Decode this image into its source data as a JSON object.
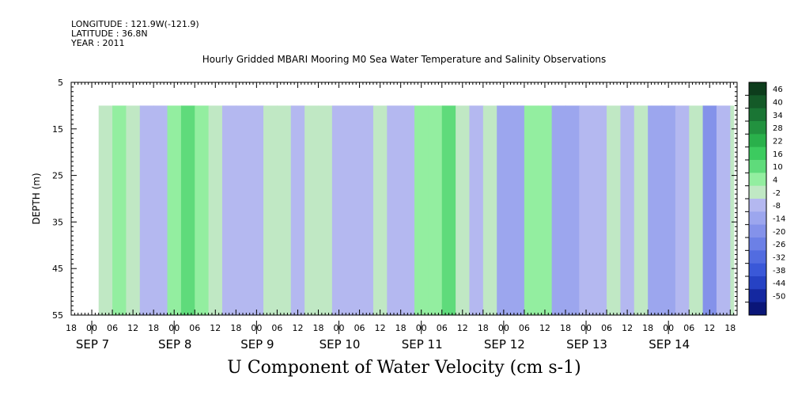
{
  "header": {
    "longitude": "LONGITUDE : 121.9W(-121.9)",
    "latitude": "LATITUDE : 36.8N",
    "year": "YEAR : 2011"
  },
  "chart_data": {
    "type": "heatmap",
    "title": "Hourly Gridded MBARI Mooring M0 Sea Water Temperature and Salinity Observations",
    "xlabel": "U Component of Water Velocity (cm s-1)",
    "ylabel": "DEPTH (m)",
    "x_range_hours": [
      "2011-09-06 18:00",
      "2011-09-14 20:00"
    ],
    "data_start": "2011-09-07 02:00",
    "data_end": "2011-09-14 19:00",
    "y_range": [
      55,
      5
    ],
    "y_ticks": [
      5,
      15,
      25,
      35,
      45,
      55
    ],
    "data_depth_range": [
      10,
      55
    ],
    "x_hour_ticks": [
      "18",
      "00",
      "06",
      "12",
      "18",
      "00",
      "06",
      "12",
      "18",
      "00",
      "06",
      "12",
      "18",
      "00",
      "06",
      "12",
      "18",
      "00",
      "06",
      "12",
      "18",
      "00",
      "06",
      "12",
      "18",
      "00",
      "06",
      "12",
      "18",
      "00",
      "06",
      "12",
      "18"
    ],
    "x_day_labels": [
      {
        "label": "SEP 7",
        "at": "2011-09-07 00:00"
      },
      {
        "label": "SEP 8",
        "at": "2011-09-08 00:00"
      },
      {
        "label": "SEP 9",
        "at": "2011-09-09 00:00"
      },
      {
        "label": "SEP 10",
        "at": "2011-09-10 00:00"
      },
      {
        "label": "SEP 11",
        "at": "2011-09-11 00:00"
      },
      {
        "label": "SEP 12",
        "at": "2011-09-12 00:00"
      },
      {
        "label": "SEP 13",
        "at": "2011-09-13 00:00"
      },
      {
        "label": "SEP 14",
        "at": "2011-09-14 00:00"
      }
    ],
    "colorbar": {
      "levels": [
        46,
        40,
        34,
        28,
        22,
        16,
        10,
        4,
        -2,
        -8,
        -14,
        -20,
        -26,
        -32,
        -38,
        -44,
        -50
      ],
      "colors": [
        "#0d3d1c",
        "#145a28",
        "#1a7534",
        "#22923f",
        "#2ab04b",
        "#3ccb5f",
        "#5fdb7b",
        "#93eea0",
        "#c0e8c4",
        "#b4b8f0",
        "#9ca6ee",
        "#8492ea",
        "#6c80e6",
        "#526ce0",
        "#3a58d8",
        "#2642c4",
        "#1428a0",
        "#0a1678"
      ]
    },
    "bands": [
      {
        "t": "2011-09-07 02:00",
        "u": 2
      },
      {
        "t": "2011-09-07 06:00",
        "u": 6
      },
      {
        "t": "2011-09-07 10:00",
        "u": 3
      },
      {
        "t": "2011-09-07 14:00",
        "u": -6
      },
      {
        "t": "2011-09-07 18:00",
        "u": -4
      },
      {
        "t": "2011-09-07 22:00",
        "u": 5
      },
      {
        "t": "2011-09-08 02:00",
        "u": 10
      },
      {
        "t": "2011-09-08 06:00",
        "u": 7
      },
      {
        "t": "2011-09-08 10:00",
        "u": 2
      },
      {
        "t": "2011-09-08 14:00",
        "u": -5
      },
      {
        "t": "2011-09-08 18:00",
        "u": -8
      },
      {
        "t": "2011-09-08 22:00",
        "u": -4
      },
      {
        "t": "2011-09-09 02:00",
        "u": 2
      },
      {
        "t": "2011-09-09 06:00",
        "u": 1
      },
      {
        "t": "2011-09-09 10:00",
        "u": -4
      },
      {
        "t": "2011-09-09 14:00",
        "u": 3
      },
      {
        "t": "2011-09-09 18:00",
        "u": 2
      },
      {
        "t": "2011-09-09 22:00",
        "u": -3
      },
      {
        "t": "2011-09-10 02:00",
        "u": -7
      },
      {
        "t": "2011-09-10 06:00",
        "u": -5
      },
      {
        "t": "2011-09-10 10:00",
        "u": 0
      },
      {
        "t": "2011-09-10 14:00",
        "u": -6
      },
      {
        "t": "2011-09-10 18:00",
        "u": -3
      },
      {
        "t": "2011-09-10 22:00",
        "u": 5
      },
      {
        "t": "2011-09-11 02:00",
        "u": 8
      },
      {
        "t": "2011-09-11 06:00",
        "u": 12
      },
      {
        "t": "2011-09-11 10:00",
        "u": 2
      },
      {
        "t": "2011-09-11 14:00",
        "u": -8
      },
      {
        "t": "2011-09-11 18:00",
        "u": 0
      },
      {
        "t": "2011-09-11 22:00",
        "u": -12
      },
      {
        "t": "2011-09-12 02:00",
        "u": -10
      },
      {
        "t": "2011-09-12 06:00",
        "u": 4
      },
      {
        "t": "2011-09-12 10:00",
        "u": 8
      },
      {
        "t": "2011-09-12 14:00",
        "u": -14
      },
      {
        "t": "2011-09-12 18:00",
        "u": -10
      },
      {
        "t": "2011-09-12 22:00",
        "u": -6
      },
      {
        "t": "2011-09-13 02:00",
        "u": -8
      },
      {
        "t": "2011-09-13 06:00",
        "u": 2
      },
      {
        "t": "2011-09-13 10:00",
        "u": -5
      },
      {
        "t": "2011-09-13 14:00",
        "u": -2
      },
      {
        "t": "2011-09-13 18:00",
        "u": -12
      },
      {
        "t": "2011-09-13 22:00",
        "u": -10
      },
      {
        "t": "2011-09-14 02:00",
        "u": -6
      },
      {
        "t": "2011-09-14 06:00",
        "u": 0
      },
      {
        "t": "2011-09-14 10:00",
        "u": -16
      },
      {
        "t": "2011-09-14 14:00",
        "u": -8
      },
      {
        "t": "2011-09-14 18:00",
        "u": 2
      }
    ]
  }
}
